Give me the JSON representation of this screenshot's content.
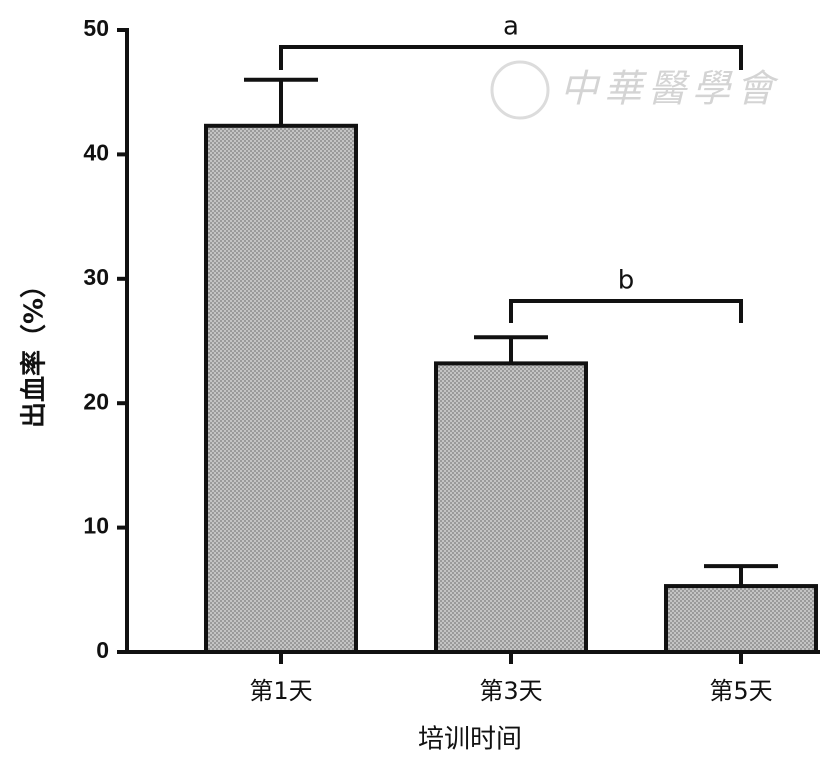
{
  "chart_data": {
    "type": "bar",
    "y_label": "出血率（%）",
    "x_label": "培训时间",
    "categories": [
      "第1天",
      "第3天",
      "第5天"
    ],
    "values": [
      42.3,
      23.2,
      5.3
    ],
    "errors": [
      3.7,
      2.1,
      1.6
    ],
    "color": "#c4c4c4",
    "ylim": [
      0,
      50
    ],
    "yticks": [
      0,
      10,
      20,
      30,
      40,
      50
    ],
    "annotations": [
      "a",
      "b"
    ],
    "watermark": "中華醫學會"
  }
}
